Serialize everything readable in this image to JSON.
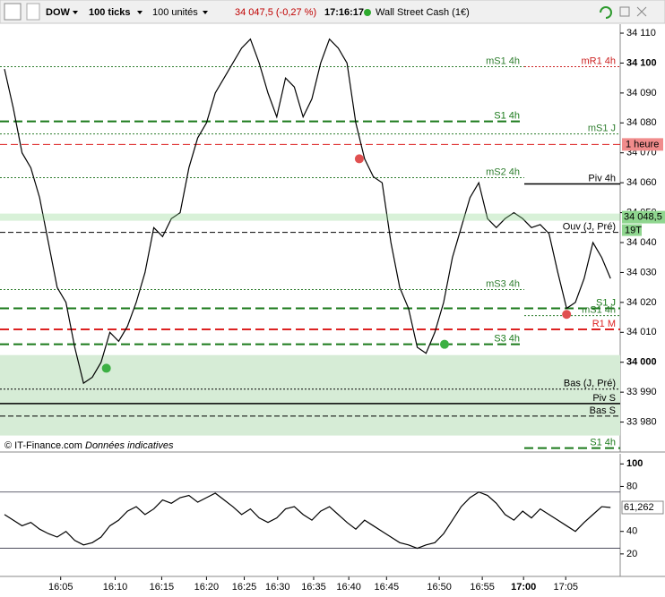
{
  "toolbar": {
    "symbol": "DOW",
    "ticks": "100 ticks",
    "units": "100 unités",
    "quote": "34 047,5 (-0,27 %)",
    "time": "17:16:17",
    "instrument": "Wall Street Cash (1€)"
  },
  "footer": {
    "copyright": "© IT-Finance.com",
    "note": "Données indicatives"
  },
  "chart_data": [
    {
      "type": "line",
      "color": "#000000",
      "xlim": [
        0,
        70
      ],
      "ylim": [
        33970,
        34113
      ],
      "values": [
        34098,
        34085,
        34070,
        34065,
        34055,
        34040,
        34025,
        34020,
        34005,
        33993,
        33995,
        34000,
        34010,
        34007,
        34012,
        34020,
        34030,
        34045,
        34042,
        34048,
        34050,
        34065,
        34075,
        34080,
        34090,
        34095,
        34100,
        34105,
        34108,
        34100,
        34090,
        34082,
        34095,
        34092,
        34082,
        34088,
        34100,
        34108,
        34105,
        34100,
        34080,
        34068,
        34062,
        34060,
        34040,
        34025,
        34018,
        34005,
        34003,
        34010,
        34020,
        34035,
        34045,
        34055,
        34060,
        34048,
        34045,
        34048,
        34050,
        34048,
        34045,
        34046,
        34043,
        34030,
        34018,
        34020,
        34028,
        34040,
        34035,
        34028
      ],
      "yticks": [
        {
          "value": 34110,
          "label": "34 110"
        },
        {
          "value": 34100,
          "label": "34 100",
          "bold": true
        },
        {
          "value": 34090,
          "label": "34 090"
        },
        {
          "value": 34080,
          "label": "34 080"
        },
        {
          "value": 34070,
          "label": "34 070"
        },
        {
          "value": 34060,
          "label": "34 060"
        },
        {
          "value": 34050,
          "label": "34 050"
        },
        {
          "value": 34040,
          "label": "34 040"
        },
        {
          "value": 34030,
          "label": "34 030"
        },
        {
          "value": 34020,
          "label": "34 020"
        },
        {
          "value": 34010,
          "label": "34 010"
        },
        {
          "value": 34000,
          "label": "34 000",
          "bold": true
        },
        {
          "value": 33990,
          "label": "33 990"
        },
        {
          "value": 33980,
          "label": "33 980"
        }
      ],
      "xticks": [
        {
          "value": 6.4,
          "label": "16:05"
        },
        {
          "value": 12.6,
          "label": "16:10"
        },
        {
          "value": 17.9,
          "label": "16:15"
        },
        {
          "value": 23,
          "label": "16:20"
        },
        {
          "value": 27.3,
          "label": "16:25"
        },
        {
          "value": 31.1,
          "label": "16:30"
        },
        {
          "value": 35.2,
          "label": "16:35"
        },
        {
          "value": 39.2,
          "label": "16:40"
        },
        {
          "value": 43.5,
          "label": "16:45"
        },
        {
          "value": 49.5,
          "label": "16:50"
        },
        {
          "value": 54.4,
          "label": "16:55"
        },
        {
          "value": 59.1,
          "label": "17:00",
          "bold": true
        },
        {
          "value": 63.9,
          "label": "17:05"
        }
      ],
      "zone": {
        "from": 33975.5,
        "to": 34002.4,
        "color": "#d6ecd6"
      },
      "levels": [
        {
          "name": "mS1 4h",
          "value": 34098.8,
          "color": "#2e7d2e",
          "style": "dotted",
          "extent": "left"
        },
        {
          "name": "mR1 4h",
          "value": 34098.8,
          "color": "#cc2222",
          "style": "dotted",
          "extent": "right"
        },
        {
          "name": "S1 4h",
          "value": 34080.5,
          "color": "#1a7a1a",
          "style": "thick",
          "extent": "left"
        },
        {
          "name": "mS1 J",
          "value": 34076.3,
          "color": "#2e7d2e",
          "style": "dotted",
          "extent": "full"
        },
        {
          "name": "mS2 4h",
          "value": 34061.7,
          "color": "#2e7d2e",
          "style": "dotted",
          "extent": "left"
        },
        {
          "name": "Piv 4h",
          "value": 34059.6,
          "color": "#000000",
          "style": "solid",
          "extent": "right"
        },
        {
          "name": "Ouv (J, Pré)",
          "value": 34043.4,
          "color": "#000000",
          "style": "dashed",
          "extent": "full"
        },
        {
          "name": "mS3 4h",
          "value": 34024.3,
          "color": "#2e7d2e",
          "style": "dotted",
          "extent": "left"
        },
        {
          "name": "S1 J",
          "value": 34018,
          "color": "#1a7a1a",
          "style": "thick",
          "extent": "full"
        },
        {
          "name": "mS1 4h",
          "value": 34015.6,
          "color": "#2e7d2e",
          "style": "dotted",
          "extent": "right"
        },
        {
          "name": "R1 M",
          "value": 34011,
          "color": "#dd2222",
          "style": "thick",
          "extent": "full"
        },
        {
          "name": "S3 4h",
          "value": 34006,
          "color": "#1a7a1a",
          "style": "thick",
          "extent": "left"
        },
        {
          "name": "Bas (J, Pré)",
          "value": 33991,
          "color": "#000000",
          "style": "dotted",
          "extent": "full"
        },
        {
          "name": "Piv S",
          "value": 33986.2,
          "color": "#000000",
          "style": "solid",
          "extent": "full"
        },
        {
          "name": "Bas S",
          "value": 33982,
          "color": "#000000",
          "style": "dashed",
          "extent": "full"
        },
        {
          "name": "S1 4h",
          "value": 33971.3,
          "color": "#1a7a1a",
          "style": "thick",
          "extent": "right"
        }
      ],
      "hour_line": {
        "name": "1 heure",
        "value": 34072.8,
        "color": "#dd2222"
      },
      "current": {
        "value": 34048.5,
        "label": "34 048,5",
        "tag": "19T",
        "color": "#8fd68f"
      },
      "markers": [
        {
          "x": 11.6,
          "y": 33998,
          "color": "#3cb043"
        },
        {
          "x": 40.4,
          "y": 34068,
          "color": "#e05050"
        },
        {
          "x": 50.1,
          "y": 34006,
          "color": "#3cb043"
        },
        {
          "x": 64,
          "y": 34016,
          "color": "#e05050"
        }
      ]
    },
    {
      "type": "line",
      "color": "#000000",
      "xlim": [
        0,
        70
      ],
      "ylim": [
        0,
        109
      ],
      "values": [
        55,
        50,
        45,
        48,
        42,
        38,
        35,
        40,
        32,
        28,
        30,
        35,
        45,
        50,
        58,
        62,
        55,
        60,
        68,
        65,
        70,
        72,
        66,
        70,
        74,
        68,
        62,
        55,
        60,
        52,
        48,
        52,
        60,
        62,
        55,
        50,
        58,
        62,
        55,
        48,
        42,
        50,
        45,
        40,
        35,
        30,
        28,
        25,
        28,
        30,
        38,
        50,
        62,
        70,
        75,
        72,
        65,
        55,
        50,
        58,
        52,
        60,
        55,
        50,
        45,
        40,
        48,
        55,
        62,
        61.262
      ],
      "yticks": [
        {
          "value": 100,
          "label": "100",
          "bold": true
        },
        80,
        40,
        20
      ],
      "levels": [
        75,
        25
      ],
      "current": {
        "value": 61.262,
        "label": "61,262"
      }
    }
  ]
}
